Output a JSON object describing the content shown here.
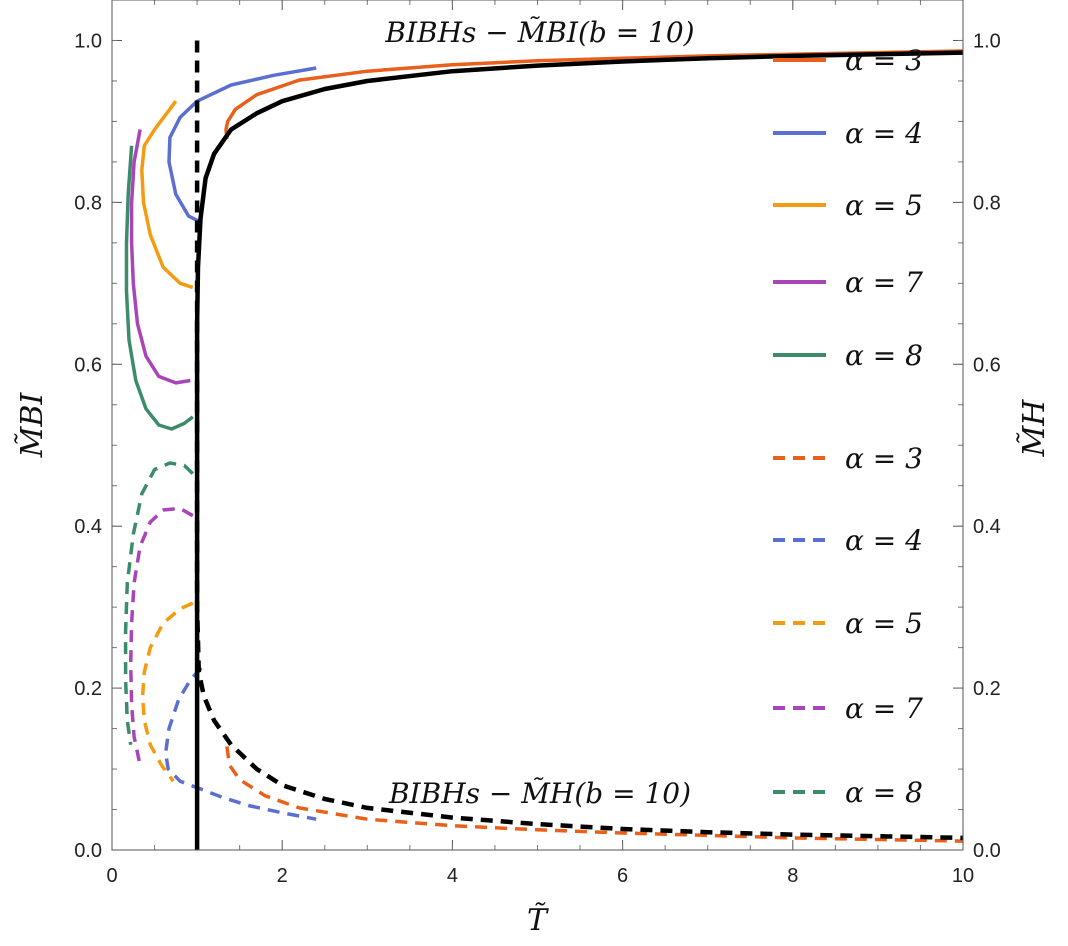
{
  "chart_data": {
    "type": "line",
    "title": "",
    "xlabel": "T̃",
    "ylabel": "M̃BI",
    "y2label": "M̃H",
    "xlim": [
      0,
      10
    ],
    "ylim": [
      0,
      1.05
    ],
    "y2lim": [
      0,
      1.05
    ],
    "x_ticks": [
      "0",
      "2",
      "4",
      "6",
      "8",
      "10"
    ],
    "y_ticks": [
      "0.0",
      "0.2",
      "0.4",
      "0.6",
      "0.8",
      "1.0"
    ],
    "y2_ticks": [
      "0.0",
      "0.2",
      "0.4",
      "0.6",
      "0.8",
      "1.0"
    ],
    "annotations": [
      {
        "text": "BIBHs − M̃BI(b = 10)",
        "x": 5,
        "y": 1.01
      },
      {
        "text": "BIBHs − M̃H(b = 10)",
        "x": 5,
        "y": 0.07
      }
    ],
    "series": [
      {
        "name": "α = 3",
        "group": "M_BI",
        "style": "solid",
        "color": "#e8601c",
        "x": [
          1.35,
          1.34,
          1.36,
          1.45,
          1.7,
          2.2,
          3,
          4,
          5,
          6,
          7,
          8,
          9,
          10
        ],
        "y": [
          0.878,
          0.89,
          0.9,
          0.915,
          0.933,
          0.951,
          0.962,
          0.97,
          0.975,
          0.978,
          0.981,
          0.983,
          0.985,
          0.987
        ]
      },
      {
        "name": "α = 4",
        "group": "M_BI",
        "style": "solid",
        "color": "#5b6fd0",
        "x": [
          1.05,
          0.9,
          0.75,
          0.67,
          0.68,
          0.8,
          1.0,
          1.4,
          1.9,
          2.4
        ],
        "y": [
          0.775,
          0.783,
          0.81,
          0.85,
          0.88,
          0.905,
          0.925,
          0.945,
          0.957,
          0.966
        ]
      },
      {
        "name": "α = 5",
        "group": "M_BI",
        "style": "solid",
        "color": "#f39c12",
        "x": [
          0.95,
          0.8,
          0.6,
          0.45,
          0.37,
          0.35,
          0.38,
          0.5,
          0.75
        ],
        "y": [
          0.695,
          0.7,
          0.72,
          0.76,
          0.8,
          0.84,
          0.87,
          0.89,
          0.925
        ]
      },
      {
        "name": "α = 7",
        "group": "M_BI",
        "style": "solid",
        "color": "#a845b8",
        "x": [
          0.92,
          0.75,
          0.55,
          0.4,
          0.3,
          0.25,
          0.23,
          0.23,
          0.26,
          0.33
        ],
        "y": [
          0.58,
          0.577,
          0.585,
          0.61,
          0.65,
          0.7,
          0.75,
          0.8,
          0.85,
          0.89
        ]
      },
      {
        "name": "α = 8",
        "group": "M_BI",
        "style": "solid",
        "color": "#3d8c69",
        "x": [
          0.95,
          0.85,
          0.7,
          0.55,
          0.4,
          0.28,
          0.2,
          0.17,
          0.17,
          0.19,
          0.23
        ],
        "y": [
          0.535,
          0.527,
          0.52,
          0.525,
          0.545,
          0.58,
          0.63,
          0.69,
          0.75,
          0.81,
          0.87
        ]
      },
      {
        "name": "α = 3",
        "group": "M_H",
        "style": "dashed",
        "color": "#e8601c",
        "x": [
          1.35,
          1.38,
          1.5,
          1.8,
          2.2,
          3,
          4,
          5,
          6,
          7,
          8,
          9,
          10
        ],
        "y": [
          0.128,
          0.105,
          0.087,
          0.067,
          0.052,
          0.038,
          0.03,
          0.025,
          0.021,
          0.018,
          0.015,
          0.013,
          0.011
        ]
      },
      {
        "name": "α = 4",
        "group": "M_H",
        "style": "dashed",
        "color": "#5b6fd0",
        "x": [
          1.05,
          0.92,
          0.78,
          0.67,
          0.63,
          0.66,
          0.8,
          1.05,
          1.3,
          1.6,
          2.0,
          2.4
        ],
        "y": [
          0.225,
          0.21,
          0.185,
          0.15,
          0.12,
          0.1,
          0.085,
          0.075,
          0.065,
          0.055,
          0.046,
          0.038
        ]
      },
      {
        "name": "α = 5",
        "group": "M_H",
        "style": "dashed",
        "color": "#f39c12",
        "x": [
          0.95,
          0.8,
          0.6,
          0.45,
          0.38,
          0.36,
          0.38,
          0.45,
          0.58,
          0.72
        ],
        "y": [
          0.305,
          0.298,
          0.28,
          0.25,
          0.22,
          0.19,
          0.16,
          0.13,
          0.105,
          0.085
        ]
      },
      {
        "name": "α = 7",
        "group": "M_H",
        "style": "dashed",
        "color": "#a845b8",
        "x": [
          0.95,
          0.8,
          0.6,
          0.45,
          0.33,
          0.26,
          0.23,
          0.22,
          0.23,
          0.26,
          0.32
        ],
        "y": [
          0.413,
          0.422,
          0.42,
          0.405,
          0.375,
          0.33,
          0.28,
          0.23,
          0.18,
          0.14,
          0.11
        ]
      },
      {
        "name": "α = 8",
        "group": "M_H",
        "style": "dashed",
        "color": "#3d8c69",
        "x": [
          0.95,
          0.85,
          0.68,
          0.5,
          0.35,
          0.25,
          0.18,
          0.16,
          0.16,
          0.18,
          0.22
        ],
        "y": [
          0.465,
          0.475,
          0.478,
          0.47,
          0.44,
          0.39,
          0.33,
          0.27,
          0.21,
          0.16,
          0.13
        ]
      },
      {
        "name": "",
        "group": "M_BI",
        "style": "solid",
        "color": "#000000",
        "x": [
          1.0,
          1.0,
          1.0,
          1.0,
          1.01,
          1.04,
          1.1,
          1.2,
          1.4,
          1.7,
          2.0,
          2.5,
          3,
          4,
          5,
          6,
          7,
          8,
          9,
          10
        ],
        "y": [
          0.0,
          0.3,
          0.5,
          0.65,
          0.72,
          0.78,
          0.83,
          0.86,
          0.89,
          0.91,
          0.925,
          0.94,
          0.95,
          0.962,
          0.969,
          0.974,
          0.978,
          0.981,
          0.983,
          0.985
        ]
      },
      {
        "name": "",
        "group": "M_H",
        "style": "dashed",
        "color": "#000000",
        "x": [
          1.0,
          1.0,
          1.0,
          1.02,
          1.08,
          1.2,
          1.4,
          1.7,
          2.0,
          2.5,
          3,
          4,
          5,
          6,
          7,
          8,
          9,
          10
        ],
        "y": [
          1.0,
          0.6,
          0.3,
          0.22,
          0.19,
          0.16,
          0.13,
          0.1,
          0.08,
          0.063,
          0.052,
          0.04,
          0.032,
          0.026,
          0.022,
          0.019,
          0.017,
          0.015
        ]
      }
    ]
  }
}
